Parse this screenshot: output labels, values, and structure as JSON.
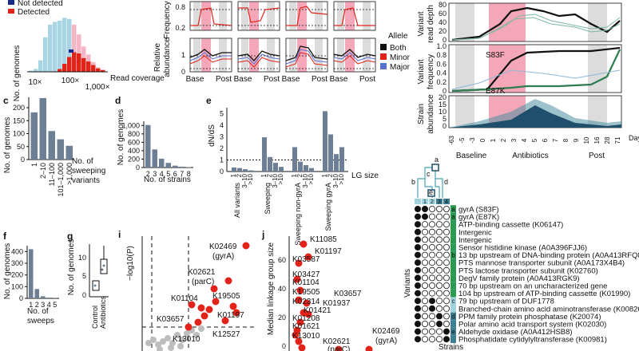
{
  "colors": {
    "slate": "#6d7f94",
    "lightblue": "#a9d4e3",
    "pink": "#f5b6c6",
    "red": "#e2231a",
    "navy": "#1b2a8a",
    "antibiotic": "#f4a7b9",
    "grey_band": "#dcdcdc",
    "dark_green": "#1e5c3a",
    "green": "#3a9a5c",
    "teal": "#4c8fa0"
  },
  "top_left": {
    "legend": [
      "Not detected",
      "Detected"
    ],
    "ylabel": "No. of genomes",
    "xlabel": "Read coverage",
    "xticks": [
      "10×",
      "100×",
      "1,000×"
    ]
  },
  "top_mid": {
    "freq_label": "Frequency",
    "rel_label": "Relative abundance",
    "freq_ticks": [
      "0.8",
      "0.2"
    ],
    "rel_ticks": [
      "1",
      "0"
    ],
    "xticks": [
      "Base",
      "Post"
    ],
    "legend_title": "Allele",
    "legend": [
      "Both",
      "Minor",
      "Major"
    ]
  },
  "top_right": {
    "depth_label": "Variant read depth",
    "depth_ticks": [
      "80",
      "60",
      "40",
      "20",
      "0"
    ],
    "freq_label": "Variant frequency",
    "freq_ticks": [
      "1.0",
      "0.8",
      "0.6",
      "0.4",
      "0.2",
      "0"
    ],
    "annot1": "S83F",
    "annot2": "E87K",
    "strain_label": "Strain abundance",
    "strain_ticks": [
      "20",
      "15",
      "10",
      "5",
      "0"
    ],
    "xticks": [
      "-63",
      "-5",
      "-3",
      "0",
      "1",
      "2",
      "3",
      "4",
      "5",
      "6",
      "7",
      "8",
      "9",
      "10",
      "16",
      "28",
      "71"
    ],
    "day_label": "Day",
    "periods": [
      "Baseline",
      "Antibiotics",
      "Post"
    ]
  },
  "panel_c": {
    "letter": "c",
    "ylabel": "No. of genomes",
    "xlabel": "No. of sweeping variants",
    "yticks": [
      "0",
      "50",
      "100",
      "150",
      "200"
    ],
    "categories": [
      "1",
      "2–10",
      "11–100",
      "101–1,000",
      ">1,000"
    ]
  },
  "panel_d": {
    "letter": "d",
    "ylabel": "No. of genomes",
    "xlabel": "No. of strains",
    "yticks": [
      "0",
      "200",
      "400",
      "600",
      "800",
      "1,000"
    ],
    "categories": [
      "2",
      "3",
      "4",
      "5",
      "6",
      "7",
      "8"
    ]
  },
  "panel_e": {
    "letter": "e",
    "ylabel": "dN/dS",
    "yticks": [
      "0",
      "1",
      "2",
      "3",
      "4",
      "5"
    ],
    "groups": [
      "All variants",
      "Sweeping",
      "Sweeping non-gyrA",
      "Sweeping gyrA"
    ],
    "lg_labels": [
      "1",
      "2",
      "3–10",
      ">10"
    ],
    "lg_title": "LG size"
  },
  "panel_f": {
    "letter": "f",
    "ylabel": "No. of genomes",
    "xlabel": "No. of sweeps",
    "yticks": [
      "0",
      "100",
      "200",
      "300",
      "400"
    ],
    "categories": [
      "1",
      "2",
      "3",
      "4",
      "5"
    ]
  },
  "panel_g": {
    "letter": "g",
    "ylabel": "No. of genomes",
    "yticks": [
      "0",
      "5",
      "10"
    ],
    "categories": [
      "Control",
      "Antibiotics"
    ]
  },
  "panel_i": {
    "letter": "i",
    "ylabel": "−log10(P)",
    "labels": [
      "K02469 (gyrA)",
      "K02621 (parC)",
      "K19505",
      "K01104",
      "K03657",
      "K01197",
      "K12527",
      "K13010"
    ]
  },
  "panel_j": {
    "letter": "j",
    "ylabel": "Median linkage group size",
    "yticks": [
      "0",
      "20",
      "40",
      "60"
    ],
    "labels": [
      "K11085",
      "K01197",
      "K03587",
      "K03427",
      "K01104",
      "K19505",
      "K03657",
      "K02314",
      "K01937",
      "K01421",
      "K01208",
      "K01621",
      "K13010",
      "K02314",
      "K02621 (parC)",
      "K02469 (gyrA)"
    ]
  },
  "panel_h": {
    "variants_label": "Variants",
    "strains_label": "Strains",
    "tree_letters": [
      "b",
      "c",
      "d",
      "a",
      "e"
    ],
    "strain_ids": [
      "1",
      "2",
      "3",
      "4"
    ],
    "rows": [
      {
        "text": "gyrA (S83F)",
        "tag": "a"
      },
      {
        "text": "gyrA (E87K)",
        "tag": "a"
      },
      {
        "text": "ATP-binding cassette (K06147)",
        "tag": ""
      },
      {
        "text": "Intergenic",
        "tag": ""
      },
      {
        "text": "Intergenic",
        "tag": ""
      },
      {
        "text": "Sensor histidine kinase (A0A396FJJ6)",
        "tag": ""
      },
      {
        "text": "13 bp upstream of DNA-binding protein (A0A413RFQ8)",
        "tag": "b"
      },
      {
        "text": "PTS mannose transporter subunit (A0A173X4B4)",
        "tag": ""
      },
      {
        "text": "PTS lactose transporter subunit (K02760)",
        "tag": ""
      },
      {
        "text": "DegV family protein (A0A413RGK9)",
        "tag": ""
      },
      {
        "text": "70 bp upstream on an uncharacterized gene",
        "tag": ""
      },
      {
        "text": "104 bp upstream of ATP-binding cassette (K01990)",
        "tag": ""
      },
      {
        "text": "79 bp upstream of DUF1778",
        "tag": "c"
      },
      {
        "text": "Branched-chain amino acid aminotransferase (K00826)",
        "tag": ""
      },
      {
        "text": "PPM family protein phosphatase (K20074)",
        "tag": "d"
      },
      {
        "text": "Polar amino acid transport system (K02030)",
        "tag": ""
      },
      {
        "text": "Aldehyde oxidase (A0A412HSB8)",
        "tag": "e"
      },
      {
        "text": "Phosphatidate cytidylyltransferase (K00981)",
        "tag": ""
      }
    ]
  },
  "chart_data": [
    {
      "panel": "c",
      "type": "bar",
      "categories": [
        "1",
        "2–10",
        "11–100",
        "101–1,000",
        ">1,000"
      ],
      "values": [
        182,
        237,
        110,
        78,
        53
      ],
      "ylim": [
        0,
        240
      ]
    },
    {
      "panel": "d",
      "type": "bar",
      "categories": [
        "2",
        "3",
        "4",
        "5",
        "6",
        "7",
        "8"
      ],
      "values": [
        1010,
        430,
        210,
        110,
        45,
        20,
        8
      ],
      "ylim": [
        0,
        1100
      ]
    },
    {
      "panel": "e",
      "type": "bar",
      "groups": [
        "All variants",
        "Sweeping",
        "Sweeping non-gyrA",
        "Sweeping gyrA"
      ],
      "values": [
        [
          0.35,
          0.3,
          0.2,
          0.1
        ],
        [
          2.95,
          1.25,
          0.75,
          0.4
        ],
        [
          2.1,
          0.85,
          0.55,
          0.3
        ],
        [
          5.2,
          3.2,
          1.5,
          2.1
        ]
      ],
      "reference": 1,
      "ylim": [
        0,
        5.5
      ]
    },
    {
      "panel": "f",
      "type": "bar",
      "categories": [
        "1",
        "2",
        "3",
        "4",
        "5"
      ],
      "values": [
        420,
        80,
        18,
        6,
        2
      ],
      "ylim": [
        0,
        450
      ]
    },
    {
      "panel": "top_left",
      "type": "bar",
      "series": [
        {
          "name": "Not detected",
          "values": [
            2,
            5,
            20,
            60,
            82,
            86,
            84,
            80,
            66,
            48,
            33,
            20,
            12,
            5,
            2,
            1
          ]
        },
        {
          "name": "Detected",
          "values": [
            0,
            0,
            0,
            0,
            0,
            1,
            5,
            14,
            26,
            34,
            32,
            24,
            18,
            12,
            6,
            3
          ]
        }
      ]
    }
  ]
}
